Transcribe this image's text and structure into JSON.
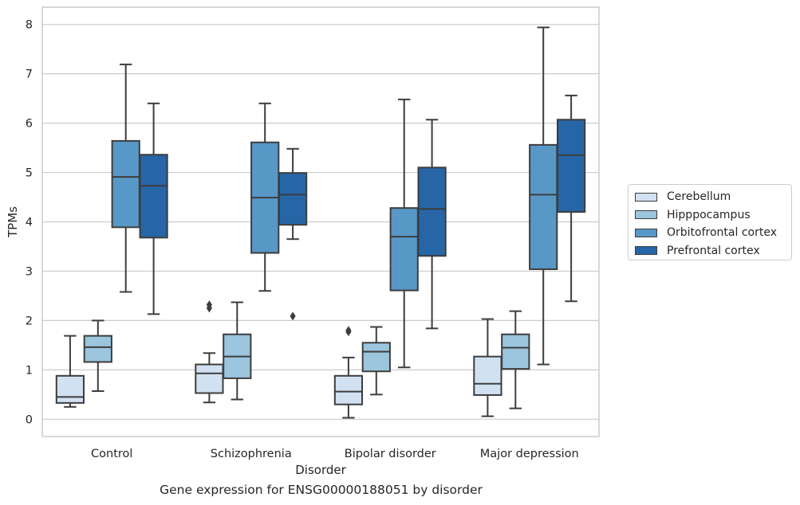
{
  "caption": "Gene expression for ENSG00000188051 by disorder",
  "chart_data": {
    "type": "box",
    "xlabel": "Disorder",
    "ylabel": "TPMs",
    "ylim": [
      -0.35,
      8.35
    ],
    "yticks": [
      "0",
      "1",
      "2",
      "3",
      "4",
      "5",
      "6",
      "7",
      "8"
    ],
    "grid": "horizontal",
    "legend_position": "right",
    "categories": [
      "Control",
      "Schizophrenia",
      "Bipolar disorder",
      "Major depression"
    ],
    "series": [
      {
        "name": "Cerebellum",
        "color": "#d1e1f1",
        "boxes": [
          {
            "min": 0.25,
            "q1": 0.33,
            "median": 0.45,
            "q3": 0.88,
            "max": 1.69,
            "outliers": []
          },
          {
            "min": 0.34,
            "q1": 0.53,
            "median": 0.93,
            "q3": 1.11,
            "max": 1.34,
            "outliers": [
              2.25,
              2.32
            ]
          },
          {
            "min": 0.03,
            "q1": 0.3,
            "median": 0.56,
            "q3": 0.88,
            "max": 1.25,
            "outliers": [
              1.77,
              1.8
            ]
          },
          {
            "min": 0.06,
            "q1": 0.49,
            "median": 0.72,
            "q3": 1.27,
            "max": 2.03,
            "outliers": []
          }
        ]
      },
      {
        "name": "Hipppocampus",
        "color": "#9cc5de",
        "boxes": [
          {
            "min": 0.57,
            "q1": 1.16,
            "median": 1.46,
            "q3": 1.69,
            "max": 2.0,
            "outliers": []
          },
          {
            "min": 0.4,
            "q1": 0.83,
            "median": 1.27,
            "q3": 1.72,
            "max": 2.37,
            "outliers": []
          },
          {
            "min": 0.5,
            "q1": 0.97,
            "median": 1.37,
            "q3": 1.55,
            "max": 1.87,
            "outliers": []
          },
          {
            "min": 0.22,
            "q1": 1.02,
            "median": 1.45,
            "q3": 1.72,
            "max": 2.19,
            "outliers": []
          }
        ]
      },
      {
        "name": "Orbitofrontal cortex",
        "color": "#5898c7",
        "boxes": [
          {
            "min": 2.58,
            "q1": 3.89,
            "median": 4.91,
            "q3": 5.64,
            "max": 7.19,
            "outliers": []
          },
          {
            "min": 2.6,
            "q1": 3.37,
            "median": 4.49,
            "q3": 5.61,
            "max": 6.4,
            "outliers": []
          },
          {
            "min": 1.05,
            "q1": 2.61,
            "median": 3.7,
            "q3": 4.28,
            "max": 6.48,
            "outliers": []
          },
          {
            "min": 1.11,
            "q1": 3.04,
            "median": 4.55,
            "q3": 5.56,
            "max": 7.94,
            "outliers": []
          }
        ]
      },
      {
        "name": "Prefrontal cortex",
        "color": "#2766a6",
        "boxes": [
          {
            "min": 2.13,
            "q1": 3.68,
            "median": 4.73,
            "q3": 5.36,
            "max": 6.4,
            "outliers": []
          },
          {
            "min": 3.65,
            "q1": 3.94,
            "median": 4.55,
            "q3": 4.99,
            "max": 5.48,
            "outliers": [
              2.09
            ]
          },
          {
            "min": 1.84,
            "q1": 3.31,
            "median": 4.26,
            "q3": 5.1,
            "max": 6.07,
            "outliers": []
          },
          {
            "min": 2.39,
            "q1": 4.2,
            "median": 5.35,
            "q3": 6.07,
            "max": 6.56,
            "outliers": []
          }
        ]
      }
    ]
  }
}
